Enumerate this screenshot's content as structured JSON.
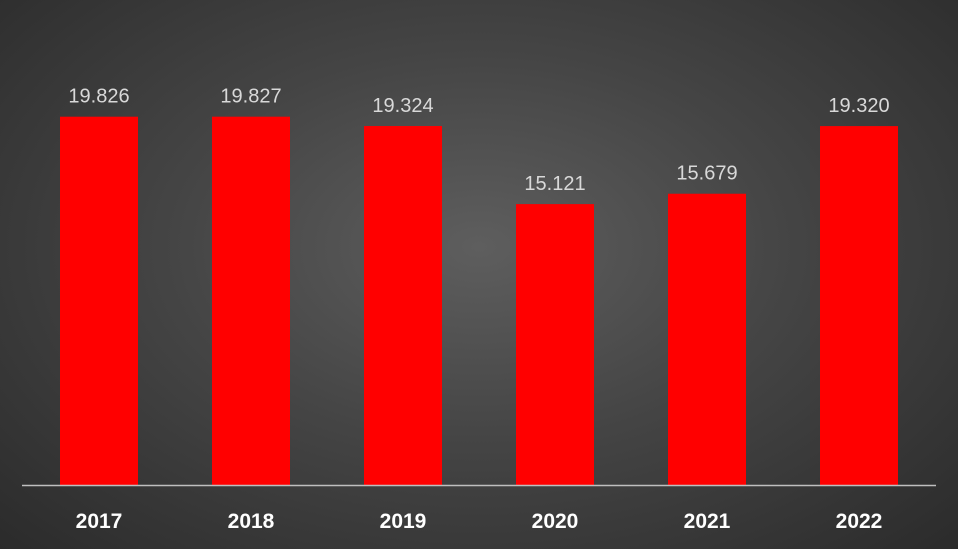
{
  "chart_data": {
    "type": "bar",
    "categories": [
      "2017",
      "2018",
      "2019",
      "2020",
      "2021",
      "2022"
    ],
    "values": [
      19.826,
      19.827,
      19.324,
      15.121,
      15.679,
      19.32
    ],
    "data_labels": [
      "19.826",
      "19.827",
      "19.324",
      "15.121",
      "15.679",
      "19.320"
    ],
    "title": "",
    "xlabel": "",
    "ylabel": "",
    "ylim": [
      0,
      26
    ],
    "grid": false,
    "legend": "none",
    "colors": {
      "bar": "#ff0000",
      "label": "#d9d9d9",
      "tick": "#ffffff",
      "axis": "#bfbfbf"
    }
  }
}
